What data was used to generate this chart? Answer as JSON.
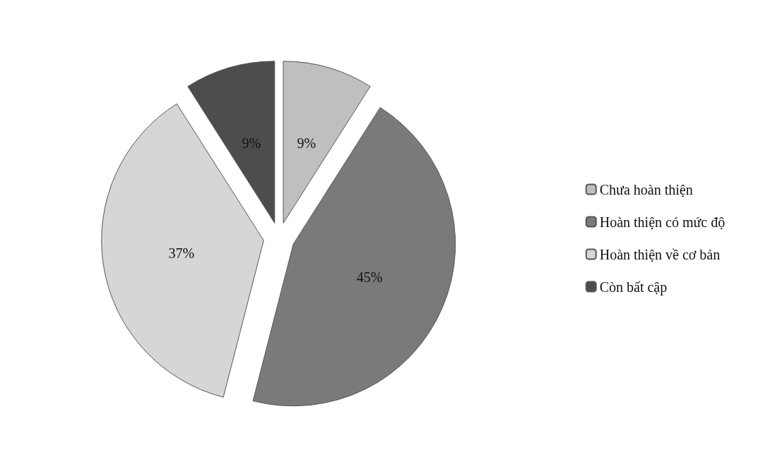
{
  "chart_data": {
    "type": "pie",
    "categories": [
      "Chưa hoàn thiện",
      "Hoàn thiện có mức độ",
      "Hoàn thiện về cơ bản",
      "Còn bất cập"
    ],
    "values": [
      9,
      45,
      37,
      9
    ],
    "value_labels": [
      "9%",
      "45%",
      "37%",
      "9%"
    ],
    "colors": [
      "#bfbfbf",
      "#7a7a7a",
      "#d6d6d6",
      "#4d4d4d"
    ],
    "legend": "right"
  }
}
